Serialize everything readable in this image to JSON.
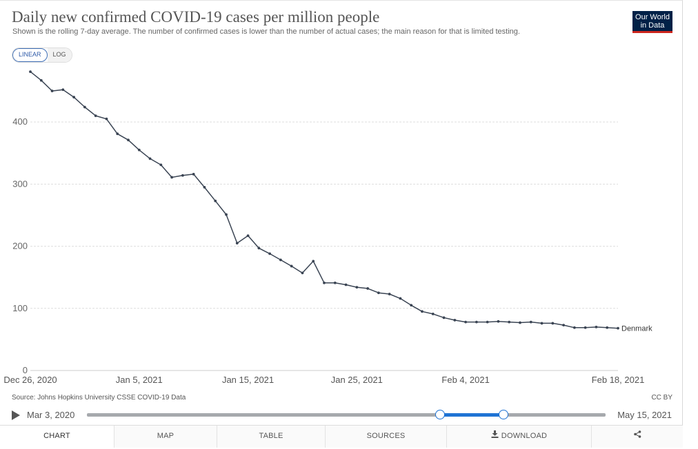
{
  "header": {
    "title": "Daily new confirmed COVID-19 cases per million people",
    "subtitle": "Shown is the rolling 7-day average. The number of confirmed cases is lower than the number of actual cases; the main reason for that is limited testing.",
    "logo_line1": "Our World",
    "logo_line2": "in Data"
  },
  "scale_toggle": {
    "linear": "LINEAR",
    "log": "LOG",
    "selected": "LINEAR"
  },
  "chart_data": {
    "type": "line",
    "y_scale": "linear",
    "ylim": [
      0,
      480
    ],
    "yticks": [
      0,
      100,
      200,
      300,
      400
    ],
    "grid": true,
    "x_ticks": [
      "Dec 26, 2020",
      "Jan 5, 2021",
      "Jan 15, 2021",
      "Jan 25, 2021",
      "Feb 4, 2021",
      "Feb 18, 2021"
    ],
    "x_tick_days": [
      0,
      10,
      20,
      30,
      40,
      54
    ],
    "line_color": "#3a4453",
    "series": [
      {
        "name": "Denmark",
        "x": [
          "2020-12-26",
          "2020-12-27",
          "2020-12-28",
          "2020-12-29",
          "2020-12-30",
          "2020-12-31",
          "2021-01-01",
          "2021-01-02",
          "2021-01-03",
          "2021-01-04",
          "2021-01-05",
          "2021-01-06",
          "2021-01-07",
          "2021-01-08",
          "2021-01-09",
          "2021-01-10",
          "2021-01-11",
          "2021-01-12",
          "2021-01-13",
          "2021-01-14",
          "2021-01-15",
          "2021-01-16",
          "2021-01-17",
          "2021-01-18",
          "2021-01-19",
          "2021-01-20",
          "2021-01-21",
          "2021-01-22",
          "2021-01-23",
          "2021-01-24",
          "2021-01-25",
          "2021-01-26",
          "2021-01-27",
          "2021-01-28",
          "2021-01-29",
          "2021-01-30",
          "2021-01-31",
          "2021-02-01",
          "2021-02-02",
          "2021-02-03",
          "2021-02-04",
          "2021-02-05",
          "2021-02-06",
          "2021-02-07",
          "2021-02-08",
          "2021-02-09",
          "2021-02-10",
          "2021-02-11",
          "2021-02-12",
          "2021-02-13",
          "2021-02-14",
          "2021-02-15",
          "2021-02-16",
          "2021-02-17",
          "2021-02-18"
        ],
        "values": [
          481,
          467,
          450,
          452,
          440,
          424,
          410,
          405,
          381,
          371,
          355,
          341,
          331,
          311,
          314,
          316,
          295,
          273,
          251,
          205,
          217,
          197,
          188,
          178,
          168,
          157,
          176,
          141,
          141,
          138,
          134,
          132,
          125,
          123,
          116,
          105,
          95,
          91,
          85,
          81,
          78,
          78,
          78,
          79,
          78,
          77,
          78,
          76,
          76,
          73,
          69,
          69,
          70,
          69,
          68
        ]
      }
    ]
  },
  "footer": {
    "source": "Source: Johns Hopkins University CSSE COVID-19 Data",
    "license": "CC BY"
  },
  "timeline": {
    "start_label": "Mar 3, 2020",
    "end_label": "May 15, 2021",
    "range_start": 0.681,
    "range_end": 0.803
  },
  "tabs": [
    {
      "label": "CHART",
      "active": true
    },
    {
      "label": "MAP"
    },
    {
      "label": "TABLE"
    },
    {
      "label": "SOURCES"
    },
    {
      "label": "DOWNLOAD",
      "icon": "download-icon"
    },
    {
      "label": "",
      "icon": "share-icon"
    }
  ]
}
